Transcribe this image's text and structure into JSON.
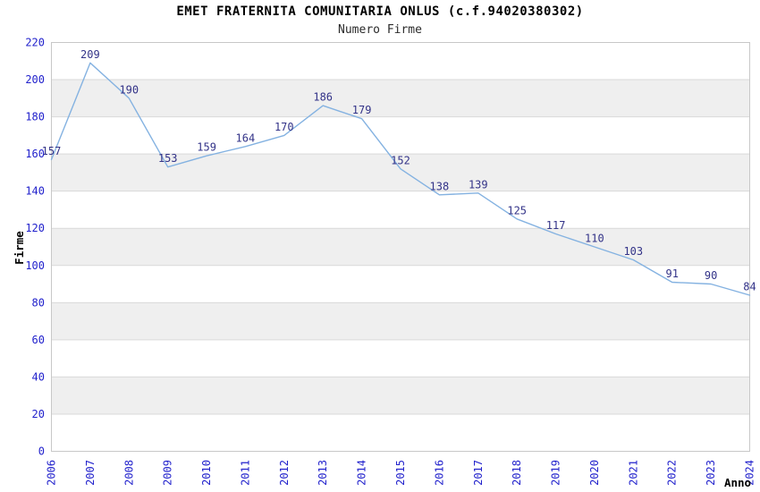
{
  "header": {
    "title": "EMET FRATERNITA COMUNITARIA ONLUS (c.f.94020380302)",
    "subtitle": "Numero Firme"
  },
  "chart_data": {
    "type": "line",
    "title": "EMET FRATERNITA COMUNITARIA ONLUS (c.f.94020380302)",
    "subtitle": "Numero Firme",
    "xlabel": "Anno",
    "ylabel": "Firme",
    "categories": [
      "2006",
      "2007",
      "2008",
      "2009",
      "2010",
      "2011",
      "2012",
      "2013",
      "2014",
      "2015",
      "2016",
      "2017",
      "2018",
      "2019",
      "2020",
      "2021",
      "2022",
      "2023",
      "2024"
    ],
    "series": [
      {
        "name": "Numero Firme",
        "values": [
          157,
          209,
          190,
          153,
          159,
          164,
          170,
          186,
          179,
          152,
          138,
          139,
          125,
          117,
          110,
          103,
          91,
          90,
          84
        ]
      }
    ],
    "ylim": [
      0,
      220
    ],
    "ytick_step": 20,
    "grid": true,
    "bands": "alternating-horizontal",
    "legend": "none",
    "data_labels_visible": true,
    "colors": {
      "line": "#84b2e1",
      "data_label": "#333388",
      "tick_label": "#2222cc",
      "axis_title": "#000000",
      "band_fill": "#efefef",
      "grid_line": "#d9d9d9",
      "plot_border": "#c8c8c8",
      "background": "#ffffff"
    }
  }
}
